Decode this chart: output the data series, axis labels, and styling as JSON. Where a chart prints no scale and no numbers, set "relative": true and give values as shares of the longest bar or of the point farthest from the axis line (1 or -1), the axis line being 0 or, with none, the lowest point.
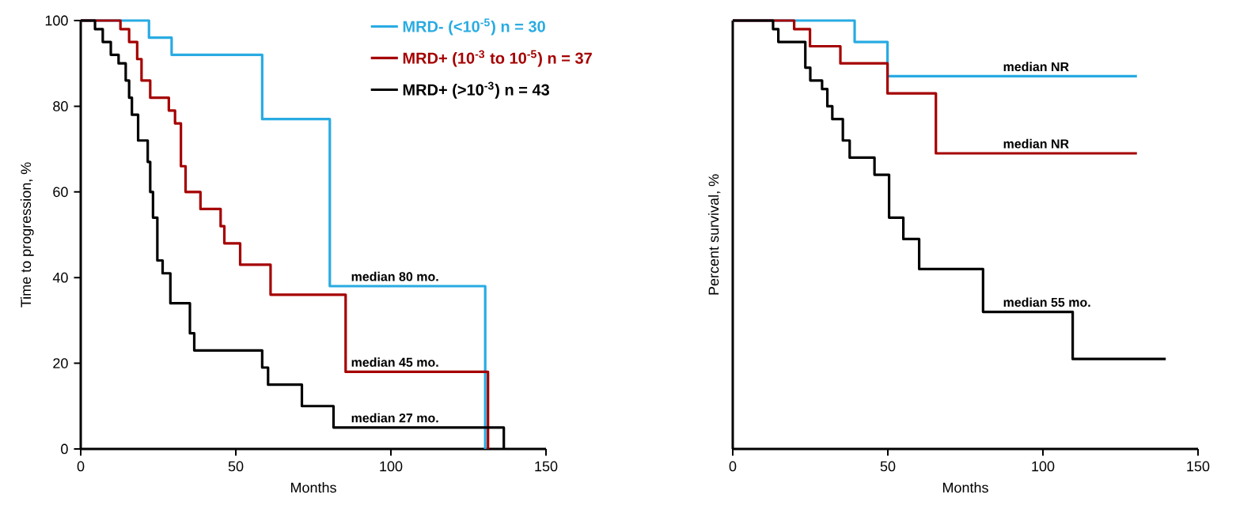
{
  "chart_data": [
    {
      "type": "step",
      "xlabel": "Months",
      "ylabel": "Time to progression, %",
      "xlim": [
        0,
        150
      ],
      "ylim": [
        0,
        100
      ],
      "xticks": [
        0,
        50,
        100,
        150
      ],
      "yticks": [
        0,
        20,
        40,
        60,
        80,
        100
      ],
      "legend": "top right",
      "series": [
        {
          "name": "MRD- (<10$^{-5}$) n = 30",
          "color": "#29abe2",
          "x": [
            0,
            22,
            29.3,
            58.5,
            80.3,
            130.4
          ],
          "values": [
            100,
            96,
            92,
            77,
            38,
            0
          ]
        },
        {
          "name": "MRD+ (10$^{-3}$ to 10$^{-5}$) n = 37",
          "color": "#a50000",
          "x": [
            0,
            12.8,
            15.6,
            18.2,
            19.6,
            22.4,
            28.4,
            30.4,
            32.3,
            33.8,
            38.6,
            45.1,
            46.3,
            51.4,
            61.2,
            85.4,
            131.3
          ],
          "values": [
            100,
            98,
            95,
            91,
            86,
            82,
            79,
            76,
            66,
            60,
            56,
            52,
            48,
            43,
            36,
            18,
            0
          ]
        },
        {
          "name": "MRD+ (>10$^{-3}$) n = 43",
          "color": "#000000",
          "x": [
            0,
            4.6,
            7.1,
            9.7,
            12.2,
            14.5,
            15.6,
            16.5,
            18.5,
            21.6,
            22.4,
            23.3,
            24.7,
            26.4,
            28.9,
            35.2,
            36.6,
            58.5,
            60.4,
            71.3,
            81.5,
            136.4
          ],
          "values": [
            100,
            98,
            95,
            92,
            90,
            86,
            82,
            78,
            72,
            67,
            60,
            54,
            44,
            41,
            34,
            27,
            23,
            19,
            15,
            10,
            5,
            0
          ]
        }
      ],
      "annotations": [
        "median 80 mo.",
        "median 45 mo.",
        "median 27 mo."
      ]
    },
    {
      "type": "step",
      "xlabel": "Months",
      "ylabel": "Percent survival, %",
      "xlim": [
        0,
        150
      ],
      "xticks": [
        0,
        50,
        100,
        150
      ],
      "relative": true,
      "tick_labels": "x",
      "series": [
        {
          "color": "#29abe2",
          "x": [
            0,
            39.3,
            49.9,
            130.3
          ],
          "values": [
            1,
            0.95,
            0.87,
            0.87
          ]
        },
        {
          "color": "#a50000",
          "x": [
            0,
            19.8,
            24.9,
            34.7,
            49.9,
            65.5,
            130.3
          ],
          "values": [
            1,
            0.98,
            0.94,
            0.9,
            0.83,
            0.69,
            0.69
          ]
        },
        {
          "color": "#000000",
          "x": [
            0,
            13,
            14.7,
            23.4,
            25,
            28.8,
            30.5,
            32.1,
            35.5,
            37.7,
            45.7,
            50.4,
            55,
            60.1,
            80.7,
            109.6,
            139.6
          ],
          "values": [
            1,
            0.98,
            0.95,
            0.89,
            0.86,
            0.84,
            0.8,
            0.77,
            0.72,
            0.68,
            0.64,
            0.54,
            0.49,
            0.42,
            0.32,
            0.21,
            0.21
          ]
        }
      ],
      "annotations": [
        "median NR",
        "median NR",
        "median 55 mo."
      ]
    }
  ]
}
